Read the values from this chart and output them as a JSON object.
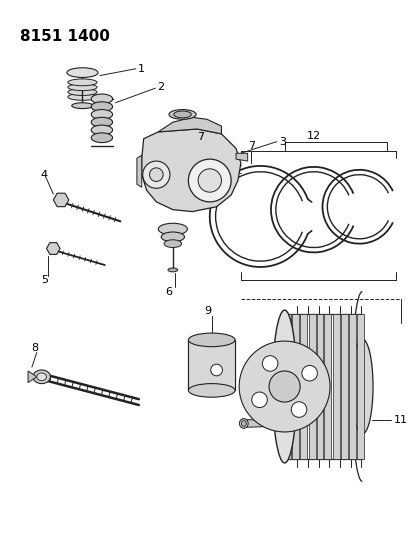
{
  "title": "8151 1400",
  "bg_color": "#ffffff",
  "line_color": "#222222",
  "text_color": "#000000",
  "fig_width": 4.11,
  "fig_height": 5.33,
  "dpi": 100
}
